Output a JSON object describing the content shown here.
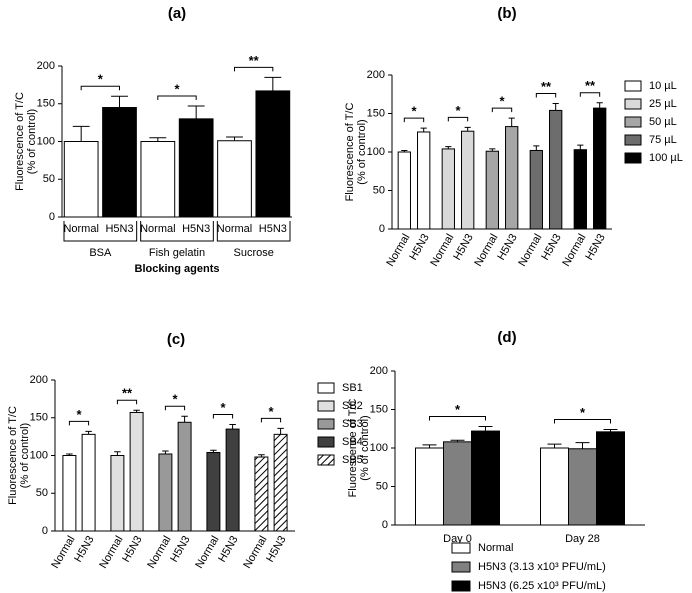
{
  "chart_data": [
    {
      "type": "grouped-bar",
      "title": "(a)",
      "ylabel": [
        "Fluorescence of T/C",
        "(% of control)"
      ],
      "xlabel": "Blocking agents",
      "ylim": [
        0,
        200
      ],
      "yticks": [
        0,
        50,
        100,
        150,
        200
      ],
      "bar_labels": [
        "Normal",
        "H5N3"
      ],
      "bar_colors": [
        "#ffffff",
        "#000000"
      ],
      "groups": [
        {
          "name": "BSA",
          "values": [
            100,
            145
          ],
          "errors": [
            20,
            15
          ],
          "significance": "*"
        },
        {
          "name": "Fish gelatin",
          "values": [
            100,
            130
          ],
          "errors": [
            5,
            17
          ],
          "significance": "*"
        },
        {
          "name": "Sucrose",
          "values": [
            101,
            167
          ],
          "errors": [
            5,
            18
          ],
          "significance": "**"
        }
      ]
    },
    {
      "type": "grouped-bar",
      "title": "(b)",
      "ylabel": [
        "Fluorescence of T/C",
        "(% of control)"
      ],
      "ylim": [
        0,
        200
      ],
      "yticks": [
        0,
        50,
        100,
        150,
        200
      ],
      "bar_labels": [
        "Normal",
        "H5N3"
      ],
      "legend": true,
      "groups": [
        {
          "name": "10 µL",
          "color": "#ffffff",
          "values": [
            100,
            126
          ],
          "errors": [
            2,
            5
          ],
          "significance": "*"
        },
        {
          "name": "25 µL",
          "color": "#d9d9d9",
          "values": [
            104,
            127
          ],
          "errors": [
            3,
            5
          ],
          "significance": "*"
        },
        {
          "name": "50 µL",
          "color": "#a6a6a6",
          "values": [
            101,
            133
          ],
          "errors": [
            3,
            11
          ],
          "significance": "*"
        },
        {
          "name": "75 µL",
          "color": "#6d6d6d",
          "values": [
            102,
            154
          ],
          "errors": [
            6,
            9
          ],
          "significance": "**"
        },
        {
          "name": "100 µL",
          "color": "#000000",
          "values": [
            103,
            157
          ],
          "errors": [
            6,
            7
          ],
          "significance": "**"
        }
      ]
    },
    {
      "type": "grouped-bar",
      "title": "(c)",
      "ylabel": [
        "Fluorescence of T/C",
        "(% of control)"
      ],
      "ylim": [
        0,
        200
      ],
      "yticks": [
        0,
        50,
        100,
        150,
        200
      ],
      "bar_labels": [
        "Normal",
        "H5N3"
      ],
      "legend": true,
      "groups": [
        {
          "name": "SB1",
          "color": "#ffffff",
          "values": [
            100,
            128
          ],
          "errors": [
            2,
            4
          ],
          "significance": "*"
        },
        {
          "name": "SB2",
          "color": "#e0e0e0",
          "values": [
            100,
            157
          ],
          "errors": [
            5,
            3
          ],
          "significance": "**"
        },
        {
          "name": "SB3",
          "color": "#999999",
          "values": [
            102,
            144
          ],
          "errors": [
            4,
            8
          ],
          "significance": "*"
        },
        {
          "name": "SB4",
          "color": "#404040",
          "values": [
            104,
            135
          ],
          "errors": [
            3,
            6
          ],
          "significance": "*"
        },
        {
          "name": "SB5",
          "color": "#ffffff",
          "hatch": true,
          "values": [
            98,
            128
          ],
          "errors": [
            3,
            8
          ],
          "significance": "*"
        }
      ]
    },
    {
      "type": "bar",
      "title": "(d)",
      "ylabel": [
        "Fluorescence of T/C",
        "(% of control)"
      ],
      "ylim": [
        0,
        200
      ],
      "yticks": [
        0,
        50,
        100,
        150,
        200
      ],
      "categories": [
        "Day 0",
        "Day 28"
      ],
      "significance": [
        "*",
        "*"
      ],
      "legend": true,
      "series": [
        {
          "name": "Normal",
          "color": "#ffffff",
          "values": [
            100,
            100
          ],
          "errors": [
            4,
            5
          ]
        },
        {
          "name": "H5N3 (3.13 x10³ PFU/mL)",
          "color": "#808080",
          "values": [
            108,
            99
          ],
          "errors": [
            2,
            8
          ]
        },
        {
          "name": "H5N3 (6.25 x10³ PFU/mL)",
          "color": "#000000",
          "values": [
            122,
            121
          ],
          "errors": [
            6,
            3
          ]
        }
      ]
    }
  ]
}
